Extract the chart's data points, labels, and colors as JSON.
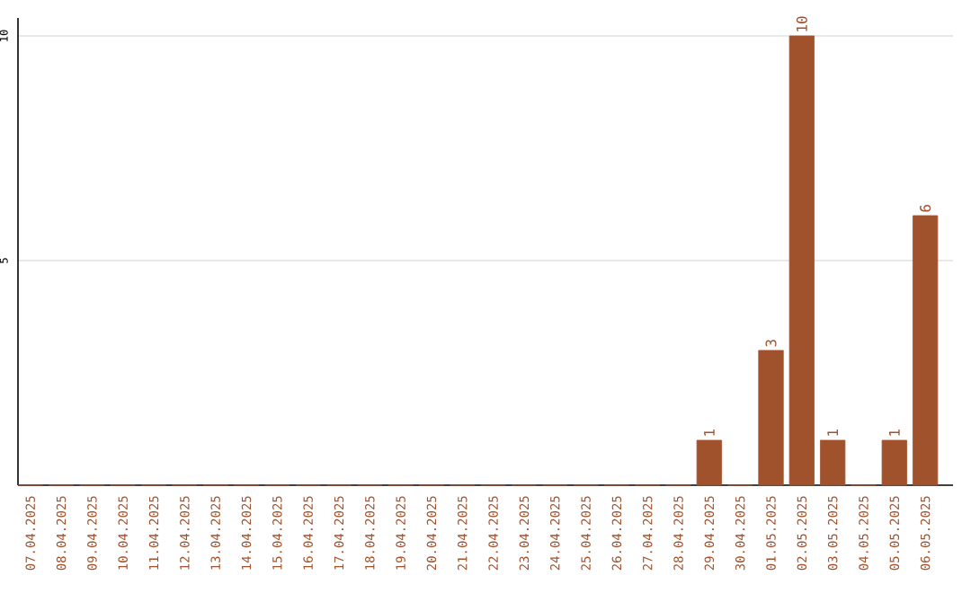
{
  "chart_data": {
    "type": "bar",
    "categories": [
      "07.04.2025",
      "08.04.2025",
      "09.04.2025",
      "10.04.2025",
      "11.04.2025",
      "12.04.2025",
      "13.04.2025",
      "14.04.2025",
      "15.04.2025",
      "16.04.2025",
      "17.04.2025",
      "18.04.2025",
      "19.04.2025",
      "20.04.2025",
      "21.04.2025",
      "22.04.2025",
      "23.04.2025",
      "24.04.2025",
      "25.04.2025",
      "26.04.2025",
      "27.04.2025",
      "28.04.2025",
      "29.04.2025",
      "30.04.2025",
      "01.05.2025",
      "02.05.2025",
      "03.05.2025",
      "04.05.2025",
      "05.05.2025",
      "06.05.2025"
    ],
    "values": [
      0,
      0,
      0,
      0,
      0,
      0,
      0,
      0,
      0,
      0,
      0,
      0,
      0,
      0,
      0,
      0,
      0,
      0,
      0,
      0,
      0,
      0,
      1,
      0,
      3,
      10,
      1,
      0,
      1,
      6
    ],
    "value_labels": [
      null,
      null,
      null,
      null,
      null,
      null,
      null,
      null,
      null,
      null,
      null,
      null,
      null,
      null,
      null,
      null,
      null,
      null,
      null,
      null,
      null,
      null,
      "1",
      null,
      "3",
      "10",
      "1",
      null,
      "1",
      "6"
    ],
    "color": "#a0522d",
    "ylim": [
      0,
      10.4
    ],
    "yticks": [
      5,
      10
    ],
    "grid": "y"
  }
}
